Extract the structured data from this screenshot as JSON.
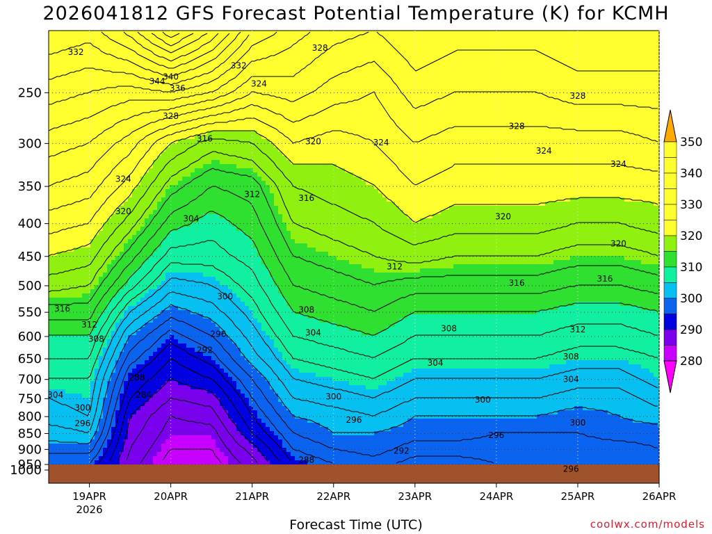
{
  "title": "2026041812 GFS Forecast Potential Temperature (K) for KCMH",
  "credit": "coolwx.com/models",
  "colors": {
    "ground": "#a0522d",
    "contour_line": "#000000",
    "grid": "#3a3a3a"
  },
  "chart_data": {
    "type": "heatmap",
    "title": "2026041812 GFS Forecast Potential Temperature (K) for KCMH",
    "xlabel": "Forecast Time (UTC)",
    "ylabel": "",
    "x_ticks": [
      "19APR",
      "20APR",
      "21APR",
      "22APR",
      "23APR",
      "24APR",
      "25APR",
      "26APR"
    ],
    "x_tick_sublabel": "2026",
    "xlim": [
      "18APR 12Z",
      "26APR 00Z"
    ],
    "y_ticks": [
      250,
      300,
      350,
      400,
      450,
      500,
      550,
      600,
      650,
      700,
      750,
      800,
      850,
      900,
      950,
      1000
    ],
    "ylim": [
      1000,
      200
    ],
    "y_scale": "log-pressure",
    "grid": true,
    "colorbar": {
      "levels": [
        280,
        290,
        300,
        310,
        320,
        330,
        340,
        350
      ],
      "colors": [
        "#ff00ff",
        "#c800ff",
        "#7a00ee",
        "#0000e0",
        "#0a64f0",
        "#05c0f0",
        "#10f0a0",
        "#30e030",
        "#90f010",
        "#ffff30",
        "#ffaa00"
      ],
      "position": "right"
    },
    "times": [
      "18APR12Z",
      "19APR00Z",
      "19APR12Z",
      "20APR00Z",
      "20APR12Z",
      "21APR00Z",
      "21APR12Z",
      "22APR00Z",
      "22APR12Z",
      "23APR00Z",
      "23APR12Z",
      "24APR00Z",
      "24APR12Z",
      "25APR00Z",
      "25APR12Z",
      "26APR00Z"
    ],
    "pressures": [
      1000,
      950,
      900,
      850,
      800,
      750,
      700,
      650,
      600,
      550,
      500,
      450,
      400,
      350,
      300,
      250,
      200
    ],
    "theta": [
      [
        293,
        296,
        299,
        301,
        303,
        304,
        306,
        308,
        310,
        313,
        317,
        320,
        323,
        326,
        329,
        333,
        338
      ],
      [
        294,
        296,
        299,
        302,
        304,
        305,
        306,
        308,
        310,
        313,
        316,
        319,
        322,
        325,
        328,
        332,
        337
      ],
      [
        287,
        287,
        288,
        289,
        290,
        292,
        294,
        297,
        300,
        304,
        309,
        313,
        317,
        321,
        325,
        331,
        341
      ],
      [
        283,
        283,
        284,
        285,
        286,
        288,
        290,
        292,
        295,
        299,
        303,
        307,
        311,
        315,
        320,
        332,
        348
      ],
      [
        283,
        283,
        284,
        285,
        287,
        289,
        292,
        295,
        298,
        301,
        304,
        307,
        309,
        312,
        317,
        330,
        342
      ],
      [
        286,
        287,
        289,
        292,
        294,
        296,
        298,
        301,
        303,
        305,
        307,
        309,
        311,
        313,
        318,
        326,
        334
      ],
      [
        292,
        294,
        296,
        298,
        300,
        302,
        304,
        306,
        308,
        310,
        312,
        314,
        316,
        318,
        322,
        327,
        331
      ],
      [
        294,
        296,
        298,
        300,
        301,
        303,
        305,
        307,
        309,
        311,
        313,
        315,
        317,
        319,
        321,
        325,
        329
      ],
      [
        295,
        297,
        299,
        300,
        302,
        304,
        306,
        308,
        310,
        312,
        314,
        316,
        318,
        320,
        322,
        324,
        328
      ],
      [
        294,
        295,
        297,
        299,
        300,
        302,
        304,
        306,
        308,
        310,
        313,
        317,
        320,
        322,
        324,
        327,
        330
      ],
      [
        294,
        295,
        297,
        299,
        300,
        302,
        304,
        306,
        308,
        310,
        313,
        316,
        319,
        321,
        323,
        326,
        329
      ],
      [
        295,
        296,
        297,
        298,
        300,
        302,
        304,
        306,
        308,
        310,
        313,
        316,
        319,
        321,
        323,
        326,
        329
      ],
      [
        295,
        296,
        297,
        298,
        300,
        302,
        304,
        306,
        308,
        310,
        313,
        316,
        319,
        321,
        323,
        326,
        329
      ],
      [
        295,
        296,
        297,
        298,
        299,
        301,
        303,
        305,
        307,
        309,
        312,
        315,
        318,
        321,
        323,
        327,
        330
      ],
      [
        295,
        296,
        297,
        299,
        300,
        301,
        303,
        305,
        307,
        309,
        312,
        315,
        318,
        321,
        323,
        327,
        330
      ],
      [
        296,
        297,
        298,
        299,
        301,
        303,
        305,
        306,
        308,
        310,
        313,
        316,
        319,
        321,
        324,
        327,
        330
      ]
    ],
    "contour_labels": [
      {
        "t": "18APR20Z",
        "p": 216,
        "v": 332
      },
      {
        "t": "20APR20Z",
        "p": 227,
        "v": 332
      },
      {
        "t": "21APR20Z",
        "p": 213,
        "v": 328
      },
      {
        "t": "19APR20Z",
        "p": 240,
        "v": 344
      },
      {
        "t": "20APR00Z",
        "p": 236,
        "v": 340
      },
      {
        "t": "20APR02Z",
        "p": 246,
        "v": 336
      },
      {
        "t": "20APR00Z",
        "p": 272,
        "v": 328
      },
      {
        "t": "21APR02Z",
        "p": 242,
        "v": 324
      },
      {
        "t": "20APR10Z",
        "p": 295,
        "v": 316
      },
      {
        "t": "21APR18Z",
        "p": 298,
        "v": 320
      },
      {
        "t": "22APR14Z",
        "p": 299,
        "v": 324
      },
      {
        "t": "19APR10Z",
        "p": 341,
        "v": 324
      },
      {
        "t": "21APR00Z",
        "p": 360,
        "v": 312
      },
      {
        "t": "21APR16Z",
        "p": 365,
        "v": 316
      },
      {
        "t": "19APR10Z",
        "p": 383,
        "v": 320
      },
      {
        "t": "20APR06Z",
        "p": 393,
        "v": 304
      },
      {
        "t": "22APR18Z",
        "p": 467,
        "v": 312
      },
      {
        "t": "20APR16Z",
        "p": 520,
        "v": 300
      },
      {
        "t": "21APR16Z",
        "p": 545,
        "v": 308
      },
      {
        "t": "20APR14Z",
        "p": 595,
        "v": 296
      },
      {
        "t": "21APR18Z",
        "p": 592,
        "v": 304
      },
      {
        "t": "20APR10Z",
        "p": 630,
        "v": 292
      },
      {
        "t": "18APR16Z",
        "p": 543,
        "v": 316
      },
      {
        "t": "19APR00Z",
        "p": 575,
        "v": 312
      },
      {
        "t": "19APR02Z",
        "p": 605,
        "v": 308
      },
      {
        "t": "19APR14Z",
        "p": 695,
        "v": 288
      },
      {
        "t": "19APR16Z",
        "p": 740,
        "v": 284
      },
      {
        "t": "18APR14Z",
        "p": 740,
        "v": 304
      },
      {
        "t": "18APR22Z",
        "p": 775,
        "v": 300
      },
      {
        "t": "18APR22Z",
        "p": 820,
        "v": 296
      },
      {
        "t": "22APR00Z",
        "p": 745,
        "v": 300
      },
      {
        "t": "22APR06Z",
        "p": 810,
        "v": 296
      },
      {
        "t": "21APR16Z",
        "p": 935,
        "v": 288
      },
      {
        "t": "22APR20Z",
        "p": 905,
        "v": 292
      },
      {
        "t": "23APR06Z",
        "p": 660,
        "v": 304
      },
      {
        "t": "23APR10Z",
        "p": 583,
        "v": 308
      },
      {
        "t": "23APR20Z",
        "p": 753,
        "v": 300
      },
      {
        "t": "24APR00Z",
        "p": 855,
        "v": 296
      },
      {
        "t": "24APR06Z",
        "p": 495,
        "v": 316
      },
      {
        "t": "24APR02Z",
        "p": 390,
        "v": 320
      },
      {
        "t": "24APR06Z",
        "p": 282,
        "v": 328
      },
      {
        "t": "24APR14Z",
        "p": 308,
        "v": 324
      },
      {
        "t": "25APR00Z",
        "p": 585,
        "v": 312
      },
      {
        "t": "24APR22Z",
        "p": 645,
        "v": 308
      },
      {
        "t": "24APR22Z",
        "p": 700,
        "v": 304
      },
      {
        "t": "25APR00Z",
        "p": 818,
        "v": 300
      },
      {
        "t": "24APR22Z",
        "p": 965,
        "v": 296
      },
      {
        "t": "25APR00Z",
        "p": 253,
        "v": 328
      },
      {
        "t": "25APR12Z",
        "p": 323,
        "v": 324
      },
      {
        "t": "25APR12Z",
        "p": 430,
        "v": 320
      },
      {
        "t": "25APR08Z",
        "p": 488,
        "v": 316
      }
    ]
  }
}
